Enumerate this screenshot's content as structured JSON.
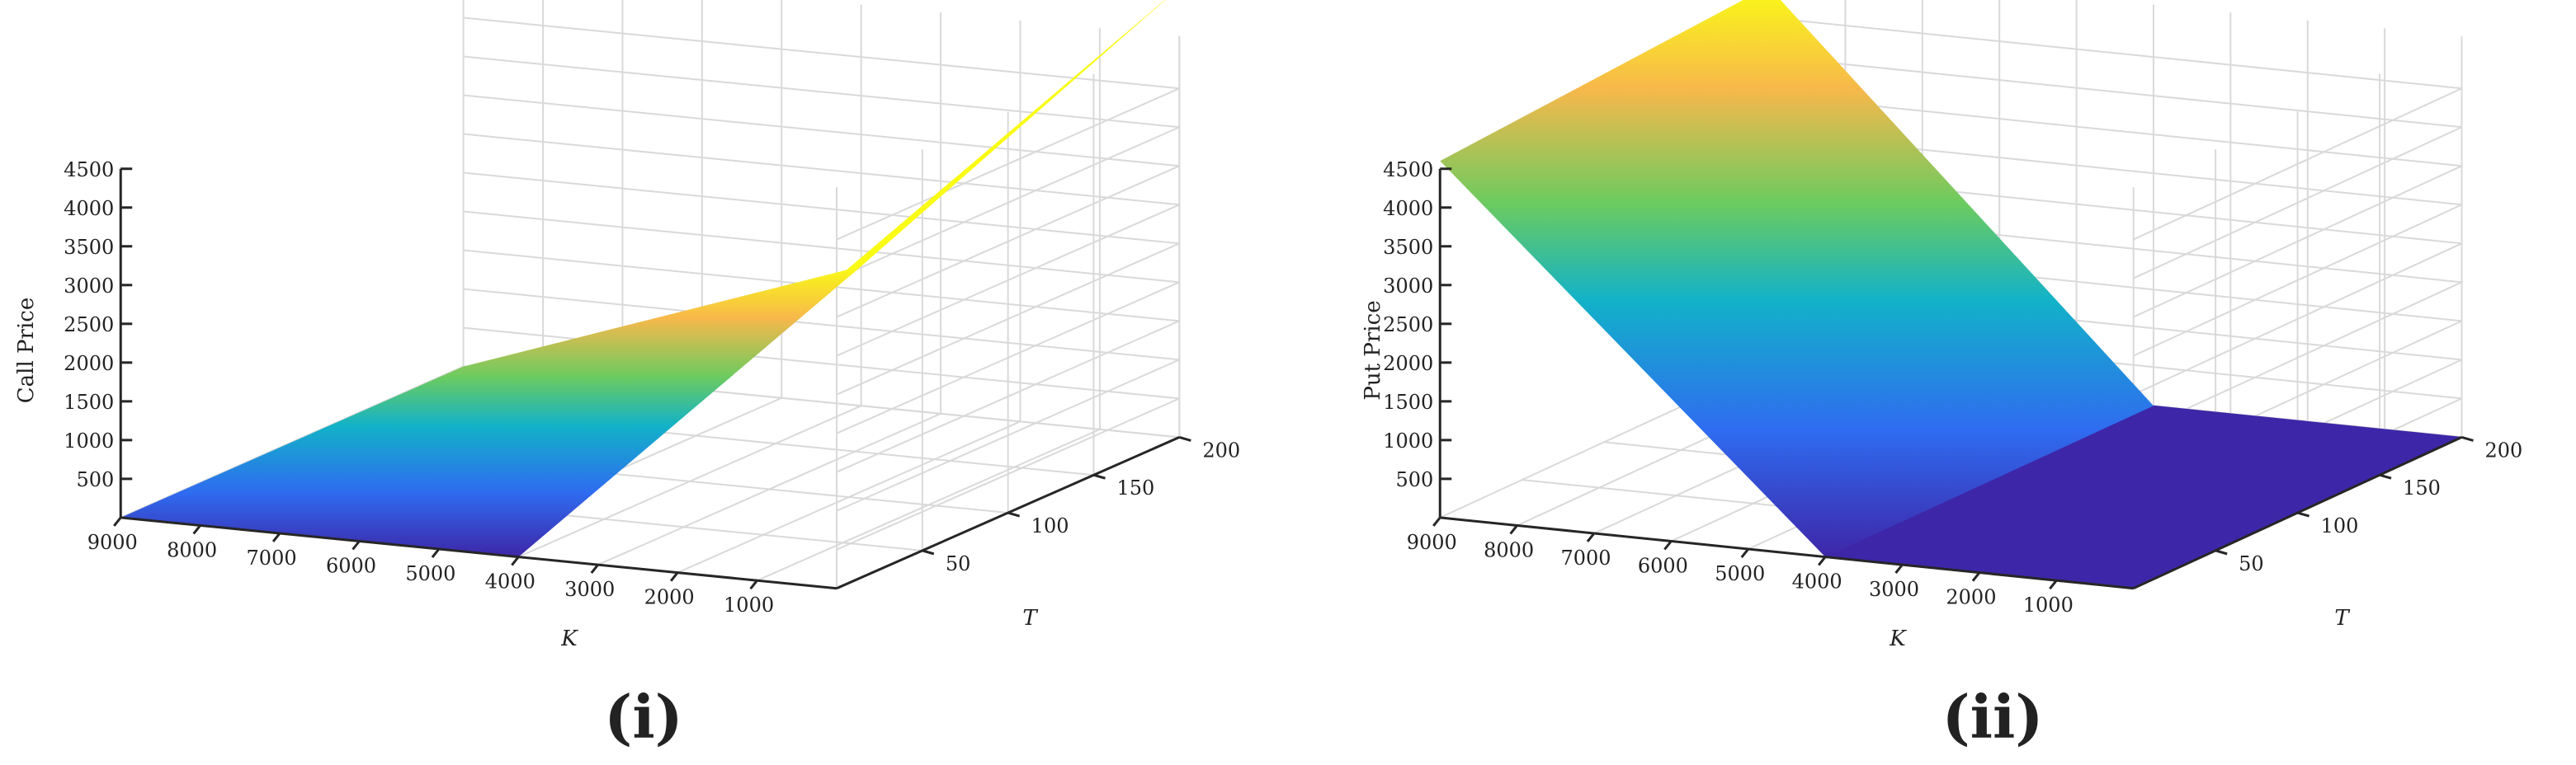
{
  "figure": {
    "captions": [
      "(i)",
      "(ii)"
    ]
  },
  "colors": {
    "surface_low": "#3e26a8",
    "surface_mid1": "#2f6bf0",
    "surface_mid2": "#12b2c8",
    "surface_mid3": "#6ccb5f",
    "surface_high1": "#f7b84b",
    "surface_high2": "#f9fb15",
    "grid": "#d9d9d9",
    "axis": "#262626"
  },
  "chart_data": [
    {
      "type": "surface",
      "panel": "(i)",
      "xlabel": "K",
      "ylabel": "T",
      "zlabel": "Call Price",
      "x_ticks": [
        1000,
        2000,
        3000,
        4000,
        5000,
        6000,
        7000,
        8000,
        9000
      ],
      "y_ticks": [
        50,
        100,
        150,
        200
      ],
      "z_ticks": [
        500,
        1000,
        1500,
        2000,
        2500,
        3000,
        3500,
        4000,
        4500
      ],
      "xlim": [
        0,
        9000
      ],
      "ylim": [
        0,
        200
      ],
      "zlim": [
        0,
        4500
      ],
      "surface": {
        "K": [
          0,
          4000,
          9000
        ],
        "T_min": 0,
        "T_max": 200,
        "price_at_T_min": [
          4000,
          0,
          0
        ],
        "price_at_T_max": [
          5800,
          1800,
          0
        ]
      },
      "grid": true
    },
    {
      "type": "surface",
      "panel": "(ii)",
      "xlabel": "K",
      "ylabel": "T",
      "zlabel": "Put Price",
      "x_ticks": [
        1000,
        2000,
        3000,
        4000,
        5000,
        6000,
        7000,
        8000,
        9000
      ],
      "y_ticks": [
        50,
        100,
        150,
        200
      ],
      "z_ticks": [
        500,
        1000,
        1500,
        2000,
        2500,
        3000,
        3500,
        4000,
        4500
      ],
      "xlim": [
        0,
        9000
      ],
      "ylim": [
        0,
        200
      ],
      "zlim": [
        0,
        4500
      ],
      "surface": {
        "K": [
          0,
          4000,
          9000
        ],
        "T_min": 0,
        "T_max": 200,
        "price_at_T_min": [
          0,
          0,
          4600
        ],
        "price_at_T_max": [
          0,
          0,
          4900
        ]
      },
      "grid": true
    }
  ]
}
